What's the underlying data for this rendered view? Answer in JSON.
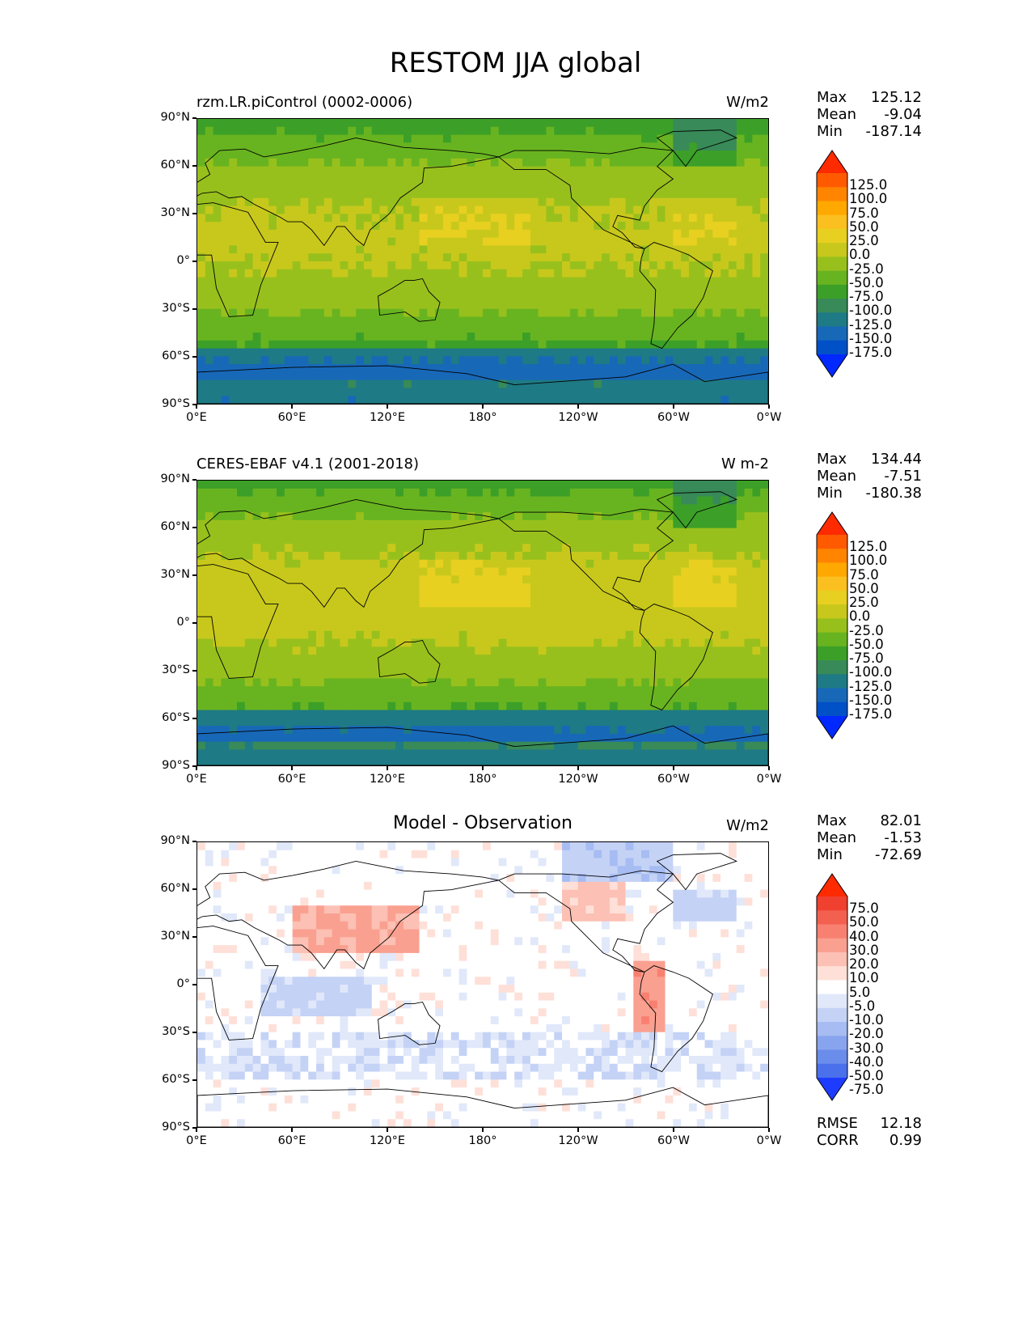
{
  "title": "RESTOM JJA global",
  "lat_ticks": [
    "90°N",
    "60°N",
    "30°N",
    "0°",
    "30°S",
    "60°S",
    "90°S"
  ],
  "lon_ticks": [
    "0°E",
    "60°E",
    "120°E",
    "180°",
    "120°W",
    "60°W",
    "0°W"
  ],
  "panels": [
    {
      "id": "model",
      "title": "rzm.LR.piControl (0002-0006)",
      "units": "W/m2",
      "stats": [
        {
          "label": "Max",
          "value": "125.12"
        },
        {
          "label": "Mean",
          "value": "-9.04"
        },
        {
          "label": "Min",
          "value": "-187.14"
        }
      ],
      "colorbar_labels": [
        "125.0",
        "100.0",
        "75.0",
        "50.0",
        "25.0",
        "0.0",
        "-25.0",
        "-50.0",
        "-75.0",
        "-100.0",
        "-125.0",
        "-150.0",
        "-175.0"
      ],
      "colors": [
        "#ff2a00",
        "#ff5a00",
        "#ff8400",
        "#ffa800",
        "#fbc020",
        "#e8d020",
        "#c8c81c",
        "#98c01c",
        "#68b420",
        "#3ca028",
        "#388a58",
        "#1e7a84",
        "#1868b8",
        "#0050c8",
        "#0028ff"
      ],
      "field": "restom_model"
    },
    {
      "id": "obs",
      "title": "CERES-EBAF v4.1 (2001-2018)",
      "units": "W m-2",
      "stats": [
        {
          "label": "Max",
          "value": "134.44"
        },
        {
          "label": "Mean",
          "value": "-7.51"
        },
        {
          "label": "Min",
          "value": "-180.38"
        }
      ],
      "colorbar_labels": [
        "125.0",
        "100.0",
        "75.0",
        "50.0",
        "25.0",
        "0.0",
        "-25.0",
        "-50.0",
        "-75.0",
        "-100.0",
        "-125.0",
        "-150.0",
        "-175.0"
      ],
      "colors": [
        "#ff2a00",
        "#ff5a00",
        "#ff8400",
        "#ffa800",
        "#fbc020",
        "#e8d020",
        "#c8c81c",
        "#98c01c",
        "#68b420",
        "#3ca028",
        "#388a58",
        "#1e7a84",
        "#1868b8",
        "#0050c8",
        "#0028ff"
      ],
      "field": "restom_obs"
    },
    {
      "id": "diff",
      "title": "Model - Observation",
      "units": "W/m2",
      "stats": [
        {
          "label": "Max",
          "value": "82.01"
        },
        {
          "label": "Mean",
          "value": "-1.53"
        },
        {
          "label": "Min",
          "value": "-72.69"
        }
      ],
      "colorbar_labels": [
        "75.0",
        "50.0",
        "40.0",
        "30.0",
        "20.0",
        "10.0",
        "5.0",
        "-5.0",
        "-10.0",
        "-20.0",
        "-30.0",
        "-40.0",
        "-50.0",
        "-75.0"
      ],
      "colors": [
        "#ff2a00",
        "#f04030",
        "#f46050",
        "#f88070",
        "#faa090",
        "#fcc0b4",
        "#fee0d8",
        "#ffffff",
        "#e0e8fa",
        "#c4d2f6",
        "#a6bcf2",
        "#88a4ee",
        "#6a8cea",
        "#4a70ec",
        "#1e3cff"
      ],
      "field": "restom_diff",
      "metrics": [
        {
          "label": "RMSE",
          "value": "12.18"
        },
        {
          "label": "CORR",
          "value": "0.99"
        }
      ]
    }
  ]
}
